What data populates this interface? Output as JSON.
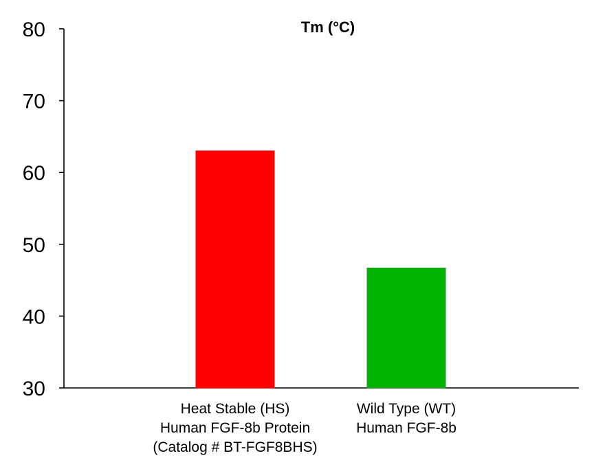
{
  "chart_data": {
    "type": "bar",
    "title": "Tm (°C)",
    "xlabel": "",
    "ylabel": "",
    "ylim": [
      30,
      80
    ],
    "yticks": [
      30,
      40,
      50,
      60,
      70,
      80
    ],
    "categories": [
      [
        "Heat Stable (HS)",
        "Human FGF-8b Protein",
        "(Catalog # BT-FGF8BHS)"
      ],
      [
        "Wild Type (WT)",
        "Human FGF-8b"
      ]
    ],
    "values": [
      63,
      46.7
    ],
    "colors": [
      "#ff0000",
      "#00b400"
    ],
    "grid": false,
    "legend": "none"
  }
}
